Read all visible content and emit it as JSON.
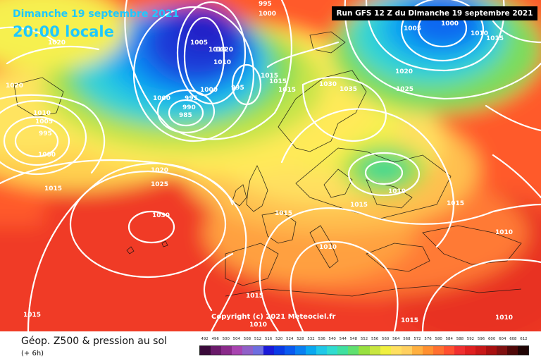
{
  "header": {
    "date": "Dimanche 19 septembre 2021",
    "time": "20:00 locale",
    "run_info": "Run GFS 12 Z du Dimanche 19 septembre 2021"
  },
  "copyright": "Copyright (c) 2021 Meteociel.fr",
  "footer": {
    "title": "Géop. Z500 & pression au sol",
    "subtitle": "(+ 6h)"
  },
  "scale": {
    "ticks": [
      "492",
      "496",
      "500",
      "504",
      "508",
      "512",
      "516",
      "520",
      "524",
      "528",
      "532",
      "536",
      "540",
      "544",
      "548",
      "552",
      "556",
      "560",
      "564",
      "568",
      "572",
      "576",
      "580",
      "584",
      "588",
      "592",
      "596",
      "600",
      "604",
      "608",
      "612"
    ],
    "colors": [
      "#3a0a3a",
      "#6a1a6a",
      "#8a2a8a",
      "#a844b0",
      "#9060c8",
      "#6e6ee0",
      "#1a1ad8",
      "#0a3ae6",
      "#0a5af0",
      "#0a80f2",
      "#0aa8f0",
      "#20c8e8",
      "#30dcd0",
      "#40e0a0",
      "#60e070",
      "#98e040",
      "#c8e640",
      "#f0f040",
      "#ffe060",
      "#ffd060",
      "#ffb040",
      "#ff9030",
      "#ff7030",
      "#ff5030",
      "#f03030",
      "#e02020",
      "#c81818",
      "#a81010",
      "#801010",
      "#500808",
      "#200404"
    ]
  },
  "pressure_labels": [
    {
      "id": "p-995-top",
      "text": "995"
    },
    {
      "id": "p-1000-top",
      "text": "1000"
    },
    {
      "id": "p-1005-ne",
      "text": "1005"
    },
    {
      "id": "p-1000-ne",
      "text": "1000"
    },
    {
      "id": "p-1010-ne",
      "text": "1010"
    },
    {
      "id": "p-1015-ne",
      "text": "1015"
    },
    {
      "id": "p-1020-nw",
      "text": "1020"
    },
    {
      "id": "p-1005-low",
      "text": "1005"
    },
    {
      "id": "p-1010-low",
      "text": "1010"
    },
    {
      "id": "p-1020-low",
      "text": "1020"
    },
    {
      "id": "p-1010-low2",
      "text": "1010"
    },
    {
      "id": "p-1000-low",
      "text": "1000"
    },
    {
      "id": "p-995-low",
      "text": "995"
    },
    {
      "id": "p-1000-low2",
      "text": "1000"
    },
    {
      "id": "p-995-low2",
      "text": "995"
    },
    {
      "id": "p-990-low",
      "text": "990"
    },
    {
      "id": "p-985-low",
      "text": "985"
    },
    {
      "id": "p-1015-n",
      "text": "1015"
    },
    {
      "id": "p-1015-n2",
      "text": "1015"
    },
    {
      "id": "p-1015-n3",
      "text": "1015"
    },
    {
      "id": "p-1030-scand",
      "text": "1030"
    },
    {
      "id": "p-1035-scand",
      "text": "1035"
    },
    {
      "id": "p-1020-e",
      "text": "1020"
    },
    {
      "id": "p-1025-e",
      "text": "1025"
    },
    {
      "id": "p-1020-w",
      "text": "1020"
    },
    {
      "id": "p-1010-w",
      "text": "1010"
    },
    {
      "id": "p-1005-w",
      "text": "1005"
    },
    {
      "id": "p-995-w",
      "text": "995"
    },
    {
      "id": "p-1000-w",
      "text": "1000"
    },
    {
      "id": "p-1020-atl",
      "text": "1020"
    },
    {
      "id": "p-1025-atl",
      "text": "1025"
    },
    {
      "id": "p-1015-atl",
      "text": "1015"
    },
    {
      "id": "p-1030-atl",
      "text": "1030"
    },
    {
      "id": "p-1010-russia",
      "text": "1010"
    },
    {
      "id": "p-1015-baltic",
      "text": "1015"
    },
    {
      "id": "p-1015-uk",
      "text": "1015"
    },
    {
      "id": "p-1010-med",
      "text": "1010"
    },
    {
      "id": "p-1015-e2",
      "text": "1015"
    },
    {
      "id": "p-1010-e2",
      "text": "1010"
    },
    {
      "id": "p-1015-med",
      "text": "1015"
    },
    {
      "id": "p-1010-med2",
      "text": "1010"
    },
    {
      "id": "p-1015-sw",
      "text": "1015"
    },
    {
      "id": "p-1015-afr",
      "text": "1015"
    },
    {
      "id": "p-1010-afr",
      "text": "1010"
    }
  ]
}
